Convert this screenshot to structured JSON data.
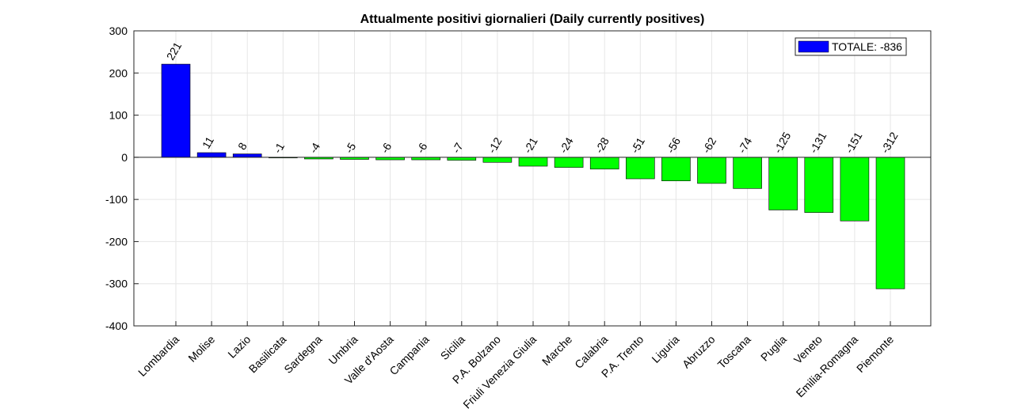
{
  "chart_data": {
    "type": "bar",
    "title": "Attualmente positivi giornalieri (Daily currently positives)",
    "xlabel": "",
    "ylabel": "",
    "ylim": [
      -400,
      300
    ],
    "yticks": [
      -400,
      -300,
      -200,
      -100,
      0,
      100,
      200,
      300
    ],
    "grid": true,
    "legend_position": "top-right",
    "legend": [
      {
        "label": "TOTALE: -836",
        "color": "#0000ff"
      }
    ],
    "colors": {
      "positive": "#0000ff",
      "negative": "#00ff00"
    },
    "categories": [
      "Lombardia",
      "Molise",
      "Lazio",
      "Basilicata",
      "Sardegna",
      "Umbria",
      "Valle d'Aosta",
      "Campania",
      "Sicilia",
      "P.A. Bolzano",
      "Friuli Venezia Giulia",
      "Marche",
      "Calabria",
      "P.A. Trento",
      "Liguria",
      "Abruzzo",
      "Toscana",
      "Puglia",
      "Veneto",
      "Emilia-Romagna",
      "Piemonte"
    ],
    "values": [
      221,
      11,
      8,
      -1,
      -4,
      -5,
      -6,
      -6,
      -7,
      -12,
      -21,
      -24,
      -28,
      -51,
      -56,
      -62,
      -74,
      -125,
      -131,
      -151,
      -312
    ]
  }
}
